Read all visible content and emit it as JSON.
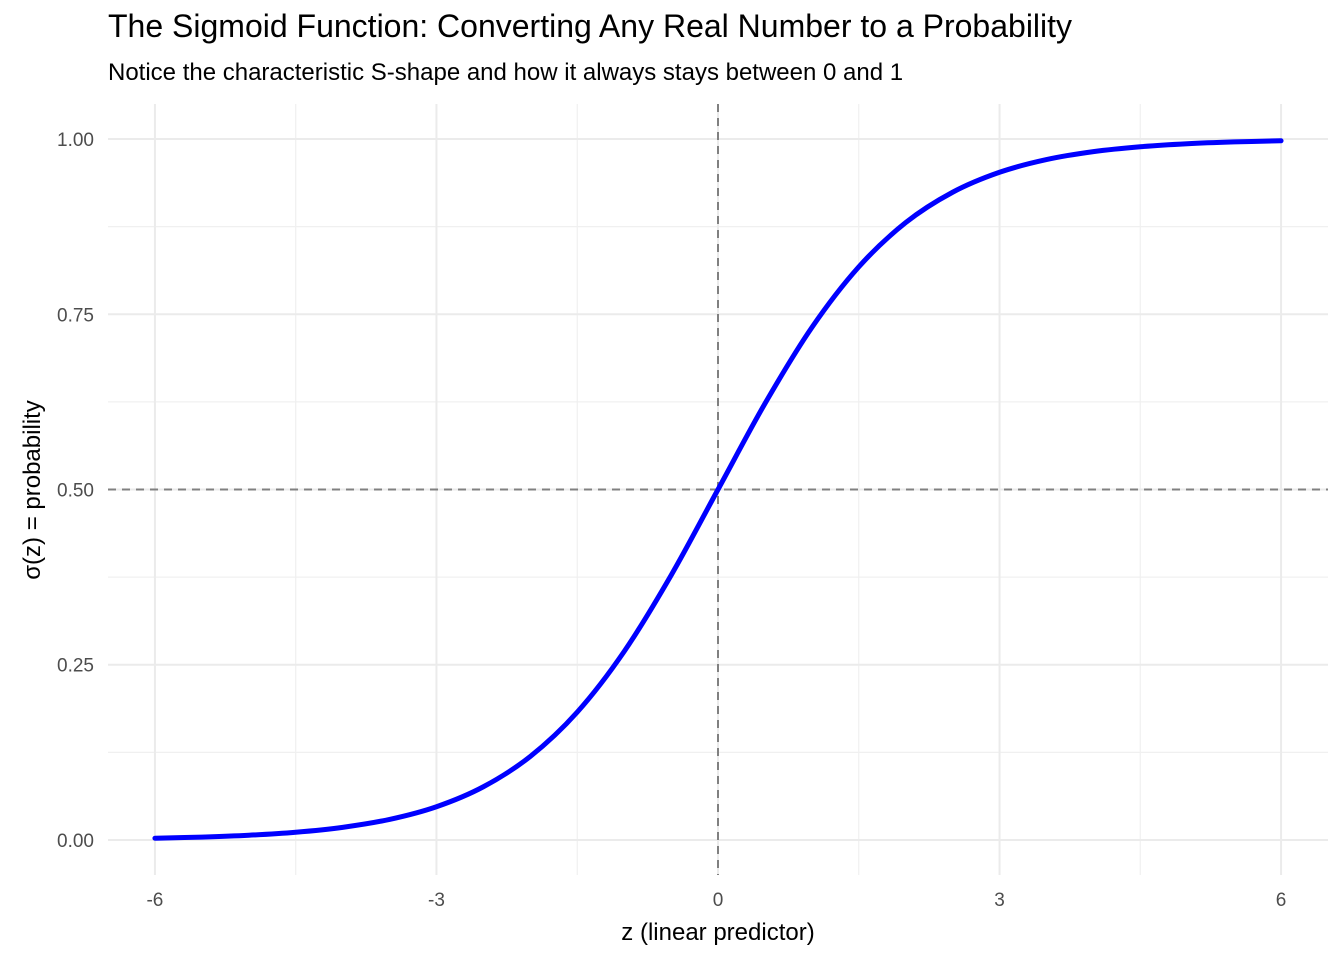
{
  "chart_data": {
    "type": "line",
    "title": "The Sigmoid Function: Converting Any Real Number to a Probability",
    "subtitle": "Notice the characteristic S-shape and how it always stays between 0 and 1",
    "xlabel": "z (linear predictor)",
    "ylabel": "σ(z) = probability",
    "xlim": [
      -6.5,
      6.5
    ],
    "ylim": [
      -0.05,
      1.05
    ],
    "x_ticks": [
      -6,
      -3,
      0,
      3,
      6
    ],
    "x_tick_labels": [
      "-6",
      "-3",
      "0",
      "3",
      "6"
    ],
    "y_ticks": [
      0,
      0.25,
      0.5,
      0.75,
      1.0
    ],
    "y_tick_labels": [
      "0.00",
      "0.25",
      "0.50",
      "0.75",
      "1.00"
    ],
    "grid": true,
    "reference_lines": [
      {
        "orientation": "horizontal",
        "value": 0.5,
        "style": "dashed",
        "color": "#808080"
      },
      {
        "orientation": "vertical",
        "value": 0,
        "style": "dashed",
        "color": "#808080"
      }
    ],
    "series": [
      {
        "color": "#0000ff",
        "x": [
          -6,
          -5.5,
          -5,
          -4.5,
          -4,
          -3.5,
          -3,
          -2.5,
          -2,
          -1.5,
          -1,
          -0.5,
          0,
          0.5,
          1,
          1.5,
          2,
          2.5,
          3,
          3.5,
          4,
          4.5,
          5,
          5.5,
          6
        ],
        "values": [
          0.0025,
          0.0041,
          0.0067,
          0.011,
          0.018,
          0.0293,
          0.0474,
          0.0759,
          0.1192,
          0.1824,
          0.2689,
          0.3775,
          0.5,
          0.6225,
          0.7311,
          0.8176,
          0.8808,
          0.9241,
          0.9526,
          0.9707,
          0.982,
          0.989,
          0.9933,
          0.9959,
          0.9975
        ]
      }
    ]
  }
}
